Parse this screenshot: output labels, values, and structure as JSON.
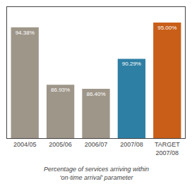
{
  "chart_data": {
    "type": "bar",
    "categories": [
      "2004/05",
      "2005/06",
      "2006/07",
      "2007/08",
      "TARGET\n2007/08"
    ],
    "values": [
      94.38,
      86.93,
      86.4,
      90.29,
      95.0
    ],
    "value_labels": [
      "94.38%",
      "86.93%",
      "86.40%",
      "90.29%",
      "95.00%"
    ],
    "colors": [
      "#9e9689",
      "#9e9689",
      "#9e9689",
      "#2e7fa4",
      "#c85e18"
    ],
    "data_labels": true,
    "ylim": [
      80,
      97
    ],
    "tick_labels": "x",
    "grid": false,
    "annotations": [
      "Percentage of services arriving within\n‘on-time arrival’ parameter"
    ]
  }
}
